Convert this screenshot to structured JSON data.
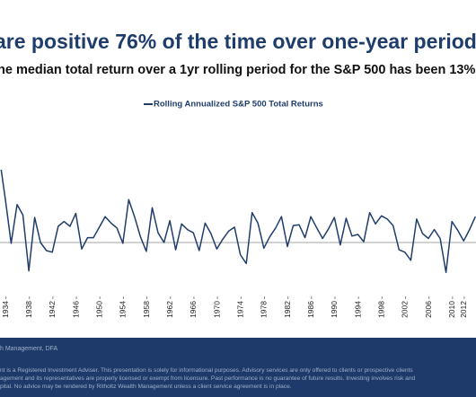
{
  "chart_data": {
    "type": "line",
    "title": "are positive 76% of the time over one-year period",
    "subtitle": "he median total return over a 1yr rolling period for the S&P 500 has been 13%",
    "series": [
      {
        "name": "Rolling Annualized S&P 500 Total Returns",
        "color": "#1f3d6b",
        "values": [
          90,
          54,
          -1,
          47,
          34,
          -35,
          31,
          0,
          -10,
          -12,
          20,
          26,
          20,
          36,
          -8,
          6,
          6,
          19,
          32,
          24,
          18,
          -1,
          53,
          32,
          7,
          -11,
          43,
          12,
          0,
          27,
          -9,
          23,
          16,
          12,
          -10,
          24,
          11,
          -8,
          4,
          14,
          19,
          -15,
          -26,
          37,
          24,
          -7,
          7,
          18,
          32,
          -5,
          21,
          22,
          6,
          32,
          18,
          5,
          17,
          31,
          -3,
          30,
          8,
          10,
          1,
          37,
          23,
          33,
          29,
          21,
          -9,
          -12,
          -22,
          29,
          11,
          5,
          16,
          5,
          -37,
          26,
          15,
          2,
          16,
          32
        ]
      }
    ],
    "x": [
      1933.2,
      1933.9,
      1934.9,
      1935.9,
      1936.9,
      1937.9,
      1938.9,
      1939.9,
      1940.9,
      1941.9,
      1942.9,
      1943.9,
      1944.9,
      1945.9,
      1946.9,
      1947.9,
      1948.9,
      1949.9,
      1950.9,
      1951.9,
      1952.9,
      1953.9,
      1954.9,
      1955.9,
      1956.9,
      1957.9,
      1958.9,
      1959.9,
      1960.9,
      1961.9,
      1962.9,
      1963.9,
      1964.9,
      1965.9,
      1966.9,
      1967.9,
      1968.9,
      1969.9,
      1970.9,
      1971.9,
      1972.9,
      1973.9,
      1974.9,
      1975.9,
      1976.9,
      1977.9,
      1978.9,
      1979.9,
      1980.9,
      1981.9,
      1982.9,
      1983.9,
      1984.9,
      1985.9,
      1986.9,
      1987.9,
      1988.9,
      1989.9,
      1990.9,
      1991.9,
      1992.9,
      1993.9,
      1994.9,
      1995.9,
      1996.9,
      1997.9,
      1998.9,
      1999.9,
      2000.9,
      2001.9,
      2002.9,
      2003.9,
      2004.9,
      2005.9,
      2006.9,
      2007.9,
      2008.9,
      2009.9,
      2010.9,
      2011.9,
      2012.9,
      2013.9
    ],
    "xlim": [
      1933,
      2014
    ],
    "xticks": [
      1934,
      1938,
      1942,
      1946,
      1950,
      1954,
      1958,
      1962,
      1966,
      1970,
      1974,
      1978,
      1982,
      1986,
      1990,
      1994,
      1998,
      2002,
      2006,
      2010,
      2012
    ],
    "ylim": [
      -70,
      120
    ]
  },
  "footer": {
    "source": "h Management, DFA",
    "disclaimer": [
      "nt is a Registered Investment Adviser. This presentation is solely for informational purposes. Advisory services are only offered to clients or prospective clients",
      "agement and its representatives are properly licensed or exempt from licensure. Past performance is no guarantee of future results. Investing involves risk and",
      "pital. No advice may be rendered by Ritholtz Wealth Management unless a client service agreement is in place."
    ]
  }
}
